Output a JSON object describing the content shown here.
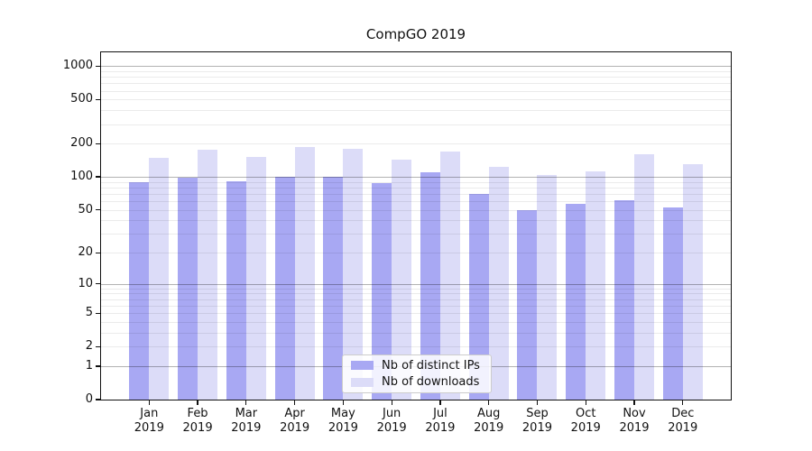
{
  "title": "CompGO 2019",
  "chart_data": {
    "type": "bar",
    "title": "CompGO 2019",
    "categories": [
      "Jan",
      "Feb",
      "Mar",
      "Apr",
      "May",
      "Jun",
      "Jul",
      "Aug",
      "Sep",
      "Oct",
      "Nov",
      "Dec"
    ],
    "category_year": "2019",
    "series": [
      {
        "name": "Nb of distinct IPs",
        "color": "#a8a8f3",
        "values": [
          90,
          99,
          92,
          101,
          100,
          87,
          110,
          70,
          50,
          57,
          61,
          53
        ]
      },
      {
        "name": "Nb of downloads",
        "color": "#dcdcf8",
        "values": [
          150,
          175,
          153,
          186,
          181,
          142,
          170,
          123,
          105,
          112,
          161,
          131
        ]
      }
    ],
    "yscale": "log1p",
    "yticks": [
      0,
      1,
      2,
      5,
      10,
      20,
      50,
      100,
      200,
      500,
      1000
    ],
    "yminorticks": [
      3,
      4,
      6,
      7,
      8,
      9,
      30,
      40,
      60,
      70,
      80,
      90,
      300,
      400,
      600,
      700,
      800,
      900
    ],
    "ylim": [
      0,
      1330
    ],
    "xlabel": "",
    "ylabel": "",
    "grid": true,
    "grid_over_bars": true,
    "legend_position": "lower-center"
  },
  "colors": {
    "bar_ips": "#a8a8f3",
    "bar_downloads": "#dcdcf8",
    "grid_major": "rgba(0,0,0,0.30)",
    "grid_minor": "rgba(0,0,0,0.08)",
    "spine": "#111111",
    "text": "#111111",
    "legend_border": "#cccccc",
    "legend_bg": "rgba(255,255,255,0.85)"
  }
}
